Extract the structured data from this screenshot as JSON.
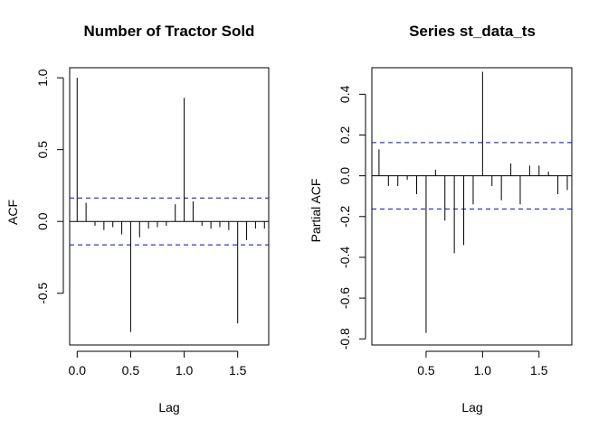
{
  "chart_data": [
    {
      "type": "bar",
      "title": "Number of Tractor Sold",
      "xlabel": "Lag",
      "ylabel": "ACF",
      "xlim": [
        -0.07,
        1.79
      ],
      "ylim": [
        -0.86,
        1.07
      ],
      "x_ticks": [
        {
          "v": 0.0,
          "label": "0.0"
        },
        {
          "v": 0.5,
          "label": "0.5"
        },
        {
          "v": 1.0,
          "label": "1.0"
        },
        {
          "v": 1.5,
          "label": "1.5"
        }
      ],
      "y_ticks": [
        {
          "v": -0.5,
          "label": "-0.5"
        },
        {
          "v": 0.0,
          "label": "0.0"
        },
        {
          "v": 0.5,
          "label": "0.5"
        },
        {
          "v": 1.0,
          "label": "1.0"
        }
      ],
      "confidence_band": 0.163,
      "confidence_color": "#0000ff",
      "x": [
        0.0,
        0.0833,
        0.1667,
        0.25,
        0.3333,
        0.4167,
        0.5,
        0.5833,
        0.6667,
        0.75,
        0.8333,
        0.9167,
        1.0,
        1.0833,
        1.1667,
        1.25,
        1.3333,
        1.4167,
        1.5,
        1.5833,
        1.6667,
        1.75
      ],
      "values": [
        1.0,
        0.13,
        -0.03,
        -0.06,
        -0.04,
        -0.09,
        -0.77,
        -0.11,
        -0.05,
        -0.04,
        -0.03,
        0.12,
        0.86,
        0.14,
        -0.03,
        -0.05,
        -0.04,
        -0.06,
        -0.71,
        -0.13,
        -0.05,
        -0.05
      ]
    },
    {
      "type": "bar",
      "title": "Series  st_data_ts",
      "xlabel": "Lag",
      "ylabel": "Partial ACF",
      "xlim": [
        0.02,
        1.79
      ],
      "ylim": [
        -0.83,
        0.53
      ],
      "x_ticks": [
        {
          "v": 0.5,
          "label": "0.5"
        },
        {
          "v": 1.0,
          "label": "1.0"
        },
        {
          "v": 1.5,
          "label": "1.5"
        }
      ],
      "y_ticks": [
        {
          "v": -0.8,
          "label": "-0.8"
        },
        {
          "v": -0.6,
          "label": "-0.6"
        },
        {
          "v": -0.4,
          "label": "-0.4"
        },
        {
          "v": -0.2,
          "label": "-0.2"
        },
        {
          "v": 0.0,
          "label": "0.0"
        },
        {
          "v": 0.2,
          "label": "0.2"
        },
        {
          "v": 0.4,
          "label": "0.4"
        }
      ],
      "confidence_band": 0.163,
      "confidence_color": "#0000ff",
      "x": [
        0.0833,
        0.1667,
        0.25,
        0.3333,
        0.4167,
        0.5,
        0.5833,
        0.6667,
        0.75,
        0.8333,
        0.9167,
        1.0,
        1.0833,
        1.1667,
        1.25,
        1.3333,
        1.4167,
        1.5,
        1.5833,
        1.6667,
        1.75
      ],
      "values": [
        0.13,
        -0.05,
        -0.05,
        -0.02,
        -0.09,
        -0.77,
        0.03,
        -0.22,
        -0.38,
        -0.34,
        -0.14,
        0.51,
        -0.05,
        -0.12,
        0.06,
        -0.14,
        0.05,
        0.05,
        0.02,
        -0.09,
        -0.07
      ]
    }
  ]
}
